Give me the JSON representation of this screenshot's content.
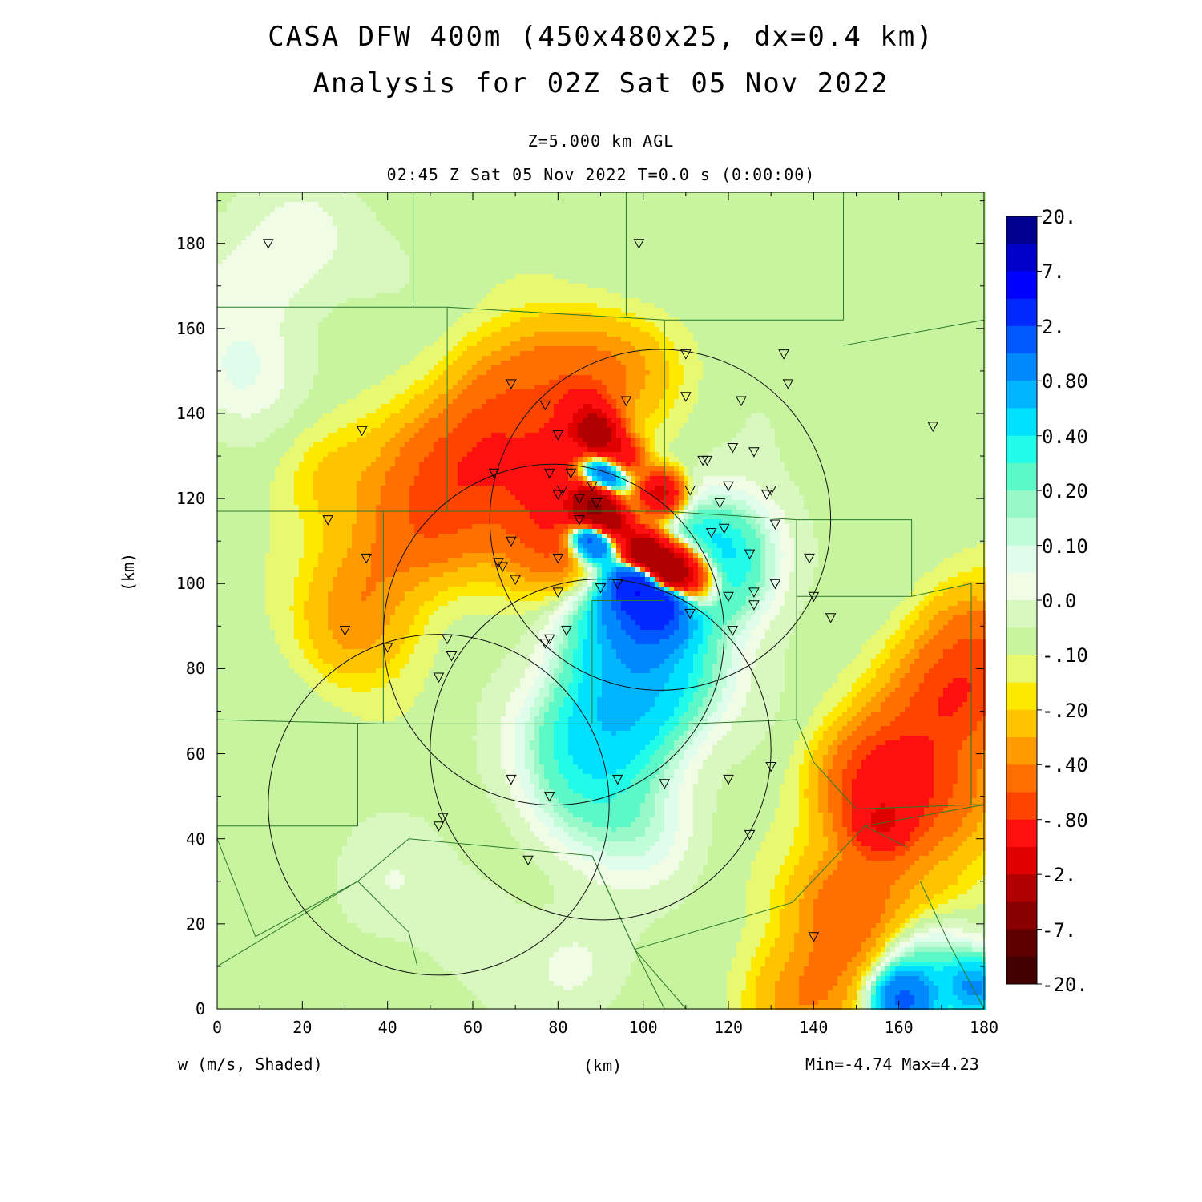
{
  "titles": {
    "line1": "CASA DFW 400m (450x480x25, dx=0.4 km)",
    "line2": "Analysis for 02Z Sat 05 Nov 2022",
    "level": "Z=5.000 km AGL",
    "time": "02:45 Z Sat 05 Nov 2022   T=0.0 s (0:00:00)"
  },
  "footer": {
    "variable": "w (m/s, Shaded)",
    "xunit": "(km)",
    "minmax": "Min=-4.74 Max=4.23"
  },
  "axes": {
    "yunit": "(km)",
    "x_range": [
      0,
      180
    ],
    "y_range": [
      0,
      192
    ],
    "x_ticks": [
      "0",
      "20",
      "40",
      "60",
      "80",
      "100",
      "120",
      "140",
      "160",
      "180"
    ],
    "y_ticks": [
      "0",
      "20",
      "40",
      "60",
      "80",
      "100",
      "120",
      "140",
      "160",
      "180"
    ]
  },
  "colorbar": {
    "labels": [
      "20.",
      "7.",
      "2.",
      "0.80",
      "0.40",
      "0.20",
      "0.10",
      "0.0",
      "-.10",
      "-.20",
      "-.40",
      "-.80",
      "-2.",
      "-7.",
      "-20."
    ],
    "colors": [
      "#00008f",
      "#0000c8",
      "#0000ff",
      "#0028ff",
      "#0058ff",
      "#0088ff",
      "#00b4ff",
      "#00e0ff",
      "#20fce8",
      "#5cf8c8",
      "#98f8c8",
      "#c0fcd8",
      "#e0fcea",
      "#f0fce6",
      "#d8f8c0",
      "#c8f4a0",
      "#e8f870",
      "#ffe800",
      "#ffc400",
      "#ff9a00",
      "#ff7000",
      "#ff4400",
      "#ff1010",
      "#e00000",
      "#b00000",
      "#8a0000",
      "#5e0000",
      "#420000"
    ]
  },
  "radar_stations": [
    [
      12,
      180
    ],
    [
      99,
      180
    ],
    [
      34,
      136
    ],
    [
      26,
      115
    ],
    [
      35,
      106
    ],
    [
      30,
      89
    ],
    [
      40,
      85
    ],
    [
      69,
      147
    ],
    [
      77,
      142
    ],
    [
      80,
      135
    ],
    [
      65,
      126
    ],
    [
      78,
      126
    ],
    [
      83,
      126
    ],
    [
      80,
      121
    ],
    [
      81,
      122
    ],
    [
      88,
      123
    ],
    [
      85,
      120
    ],
    [
      85,
      115
    ],
    [
      89,
      119
    ],
    [
      69,
      110
    ],
    [
      66,
      105
    ],
    [
      67,
      104
    ],
    [
      70,
      101
    ],
    [
      80,
      106
    ],
    [
      80,
      98
    ],
    [
      78,
      87
    ],
    [
      77,
      86
    ],
    [
      82,
      89
    ],
    [
      54,
      87
    ],
    [
      55,
      83
    ],
    [
      52,
      78
    ],
    [
      69,
      54
    ],
    [
      78,
      50
    ],
    [
      94,
      54
    ],
    [
      53,
      45
    ],
    [
      52,
      43
    ],
    [
      73,
      35
    ],
    [
      105,
      53
    ],
    [
      96,
      143
    ],
    [
      110,
      154
    ],
    [
      110,
      144
    ],
    [
      123,
      143
    ],
    [
      133,
      154
    ],
    [
      134,
      147
    ],
    [
      121,
      132
    ],
    [
      126,
      131
    ],
    [
      114,
      129
    ],
    [
      115,
      129
    ],
    [
      111,
      122
    ],
    [
      120,
      123
    ],
    [
      118,
      119
    ],
    [
      129,
      121
    ],
    [
      130,
      122
    ],
    [
      131,
      114
    ],
    [
      116,
      112
    ],
    [
      119,
      113
    ],
    [
      125,
      107
    ],
    [
      131,
      100
    ],
    [
      126,
      98
    ],
    [
      126,
      95
    ],
    [
      120,
      97
    ],
    [
      111,
      93
    ],
    [
      121,
      89
    ],
    [
      90,
      99
    ],
    [
      94,
      100
    ],
    [
      139,
      106
    ],
    [
      140,
      97
    ],
    [
      144,
      92
    ],
    [
      168,
      137
    ],
    [
      130,
      57
    ],
    [
      120,
      54
    ],
    [
      125,
      41
    ],
    [
      140,
      17
    ]
  ],
  "range_rings": [
    {
      "cx": 104,
      "cy": 115,
      "r": 40
    },
    {
      "cx": 79,
      "cy": 88,
      "r": 40
    },
    {
      "cx": 90,
      "cy": 61,
      "r": 40
    },
    {
      "cx": 52,
      "cy": 48,
      "r": 40
    }
  ],
  "w_features": [
    {
      "x": 92,
      "y": 126,
      "v": 2.0
    },
    {
      "x": 90,
      "y": 128,
      "v": 0.8
    },
    {
      "x": 88,
      "y": 112,
      "v": 2.5
    },
    {
      "x": 91,
      "y": 110,
      "v": 1.6
    },
    {
      "x": 98,
      "y": 100,
      "v": 3.0
    },
    {
      "x": 104,
      "y": 96,
      "v": 2.2
    },
    {
      "x": 97,
      "y": 95,
      "v": 1.0
    },
    {
      "x": 106,
      "y": 92,
      "v": 0.8
    },
    {
      "x": 101,
      "y": 88,
      "v": 0.6
    },
    {
      "x": 93,
      "y": 92,
      "v": 0.45
    },
    {
      "x": 108,
      "y": 80,
      "v": 0.3
    },
    {
      "x": 96,
      "y": 80,
      "v": 0.28
    },
    {
      "x": 90,
      "y": 70,
      "v": 0.22
    },
    {
      "x": 100,
      "y": 70,
      "v": 0.22
    },
    {
      "x": 82,
      "y": 62,
      "v": 0.2
    },
    {
      "x": 95,
      "y": 60,
      "v": 0.2
    },
    {
      "x": 85,
      "y": 48,
      "v": 0.18
    },
    {
      "x": 99,
      "y": 42,
      "v": 0.15
    },
    {
      "x": 112,
      "y": 105,
      "v": 0.35
    },
    {
      "x": 120,
      "y": 110,
      "v": 0.2
    },
    {
      "x": 118,
      "y": 100,
      "v": 0.2
    },
    {
      "x": 161,
      "y": 2,
      "v": 1.4
    },
    {
      "x": 165,
      "y": 8,
      "v": 0.4
    },
    {
      "x": 178,
      "y": 5,
      "v": 0.8
    },
    {
      "x": 89,
      "y": 135,
      "v": -2.5
    },
    {
      "x": 94,
      "y": 129,
      "v": -2.2
    },
    {
      "x": 88,
      "y": 118,
      "v": -4.2
    },
    {
      "x": 92,
      "y": 113,
      "v": -3.0
    },
    {
      "x": 100,
      "y": 107,
      "v": -3.5
    },
    {
      "x": 106,
      "y": 103,
      "v": -3.6
    },
    {
      "x": 111,
      "y": 101,
      "v": -1.2
    },
    {
      "x": 104,
      "y": 121,
      "v": -1.6
    },
    {
      "x": 86,
      "y": 140,
      "v": -0.8
    },
    {
      "x": 80,
      "y": 130,
      "v": -0.6
    },
    {
      "x": 75,
      "y": 120,
      "v": -0.4
    },
    {
      "x": 82,
      "y": 110,
      "v": -0.5
    },
    {
      "x": 70,
      "y": 134,
      "v": -0.3
    },
    {
      "x": 60,
      "y": 130,
      "v": -0.3
    },
    {
      "x": 50,
      "y": 128,
      "v": -0.25
    },
    {
      "x": 45,
      "y": 112,
      "v": -0.25
    },
    {
      "x": 55,
      "y": 115,
      "v": -0.3
    },
    {
      "x": 35,
      "y": 100,
      "v": -0.2
    },
    {
      "x": 32,
      "y": 88,
      "v": -0.2
    },
    {
      "x": 28,
      "y": 125,
      "v": -0.15
    },
    {
      "x": 80,
      "y": 150,
      "v": -0.3
    },
    {
      "x": 95,
      "y": 150,
      "v": -0.25
    },
    {
      "x": 66,
      "y": 145,
      "v": -0.25
    },
    {
      "x": 156,
      "y": 43,
      "v": -0.8
    },
    {
      "x": 158,
      "y": 56,
      "v": -0.5
    },
    {
      "x": 155,
      "y": 50,
      "v": -0.5
    },
    {
      "x": 169,
      "y": 71,
      "v": -0.4
    },
    {
      "x": 148,
      "y": 25,
      "v": -0.4
    },
    {
      "x": 178,
      "y": 86,
      "v": -0.4
    },
    {
      "x": 178,
      "y": 73,
      "v": -0.3
    },
    {
      "x": 172,
      "y": 50,
      "v": -0.3
    },
    {
      "x": 137,
      "y": 2,
      "v": -0.3
    },
    {
      "x": 150,
      "y": 12,
      "v": -0.2
    },
    {
      "x": 165,
      "y": 30,
      "v": -0.15
    },
    {
      "x": 8,
      "y": 170,
      "v": 0.1
    },
    {
      "x": 20,
      "y": 182,
      "v": 0.1
    },
    {
      "x": 5,
      "y": 150,
      "v": 0.12
    },
    {
      "x": 40,
      "y": 30,
      "v": 0.05
    },
    {
      "x": 60,
      "y": 20,
      "v": 0.06
    },
    {
      "x": 85,
      "y": 10,
      "v": 0.08
    }
  ]
}
